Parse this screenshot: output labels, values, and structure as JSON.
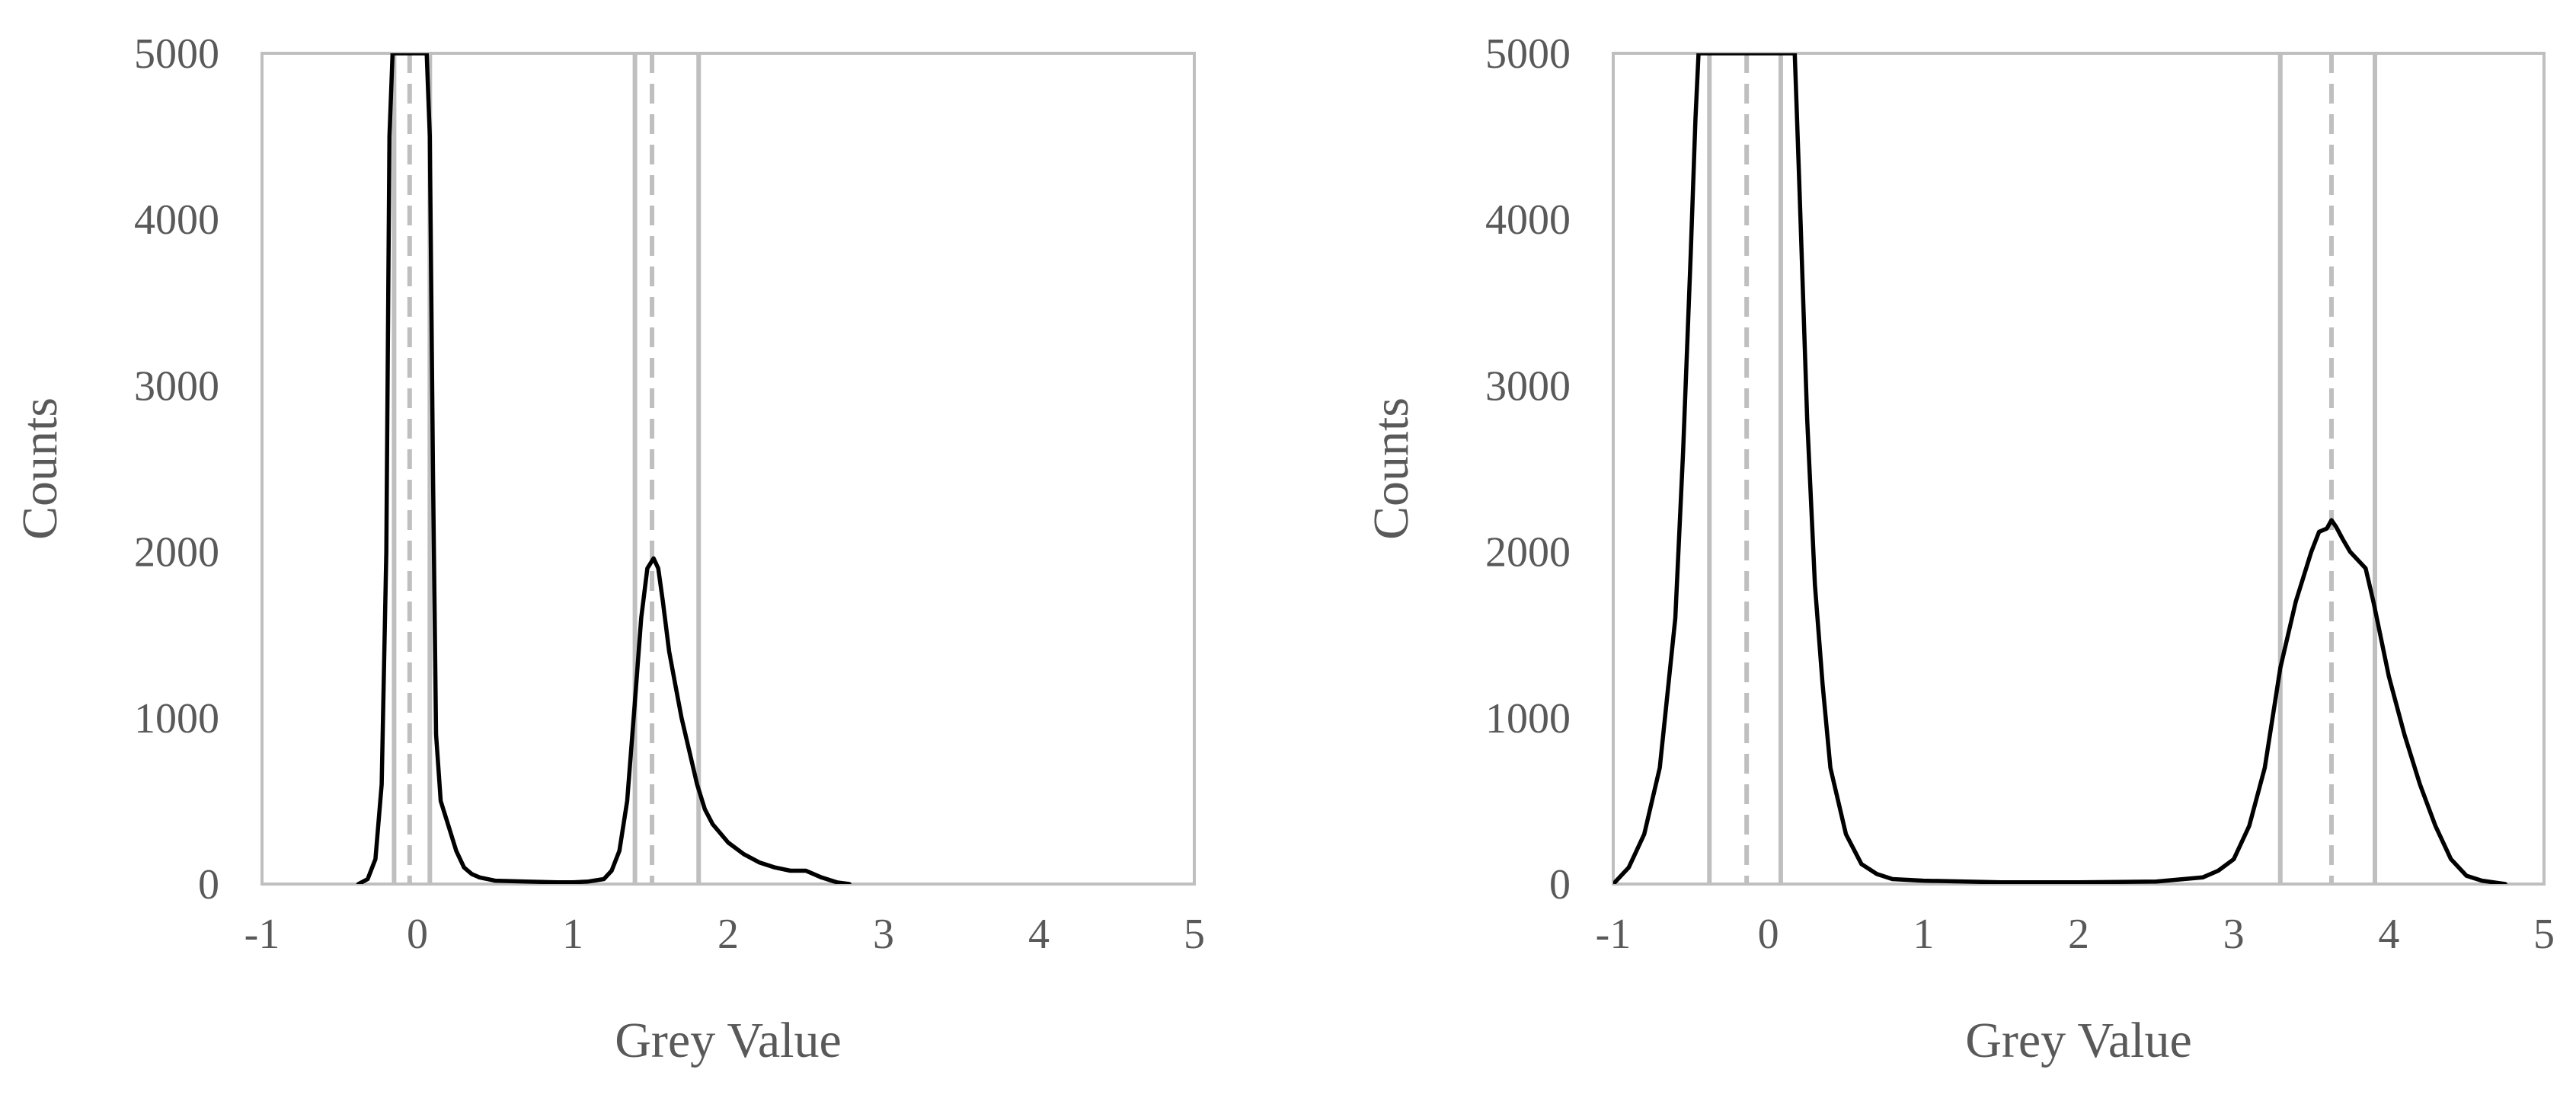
{
  "chart_data": [
    {
      "type": "line",
      "xlabel": "Grey Value",
      "ylabel": "Counts",
      "xlim": [
        -1,
        5
      ],
      "ylim": [
        0,
        5000
      ],
      "xticks": [
        "-1",
        "0",
        "1",
        "2",
        "3",
        "4",
        "5"
      ],
      "yticks": [
        "0",
        "1000",
        "2000",
        "3000",
        "4000",
        "5000"
      ],
      "grid": false,
      "legend": "none",
      "line_color": "#000000",
      "reference_line_color": "#bfbfbf",
      "reference_lines": [
        {
          "x": -0.15,
          "style": "solid"
        },
        {
          "x": -0.05,
          "style": "dashed"
        },
        {
          "x": 0.08,
          "style": "solid"
        },
        {
          "x": 1.4,
          "style": "solid"
        },
        {
          "x": 1.51,
          "style": "dashed"
        },
        {
          "x": 1.81,
          "style": "solid"
        }
      ],
      "series": [
        {
          "x": [
            -0.38,
            -0.32,
            -0.27,
            -0.23,
            -0.2,
            -0.18,
            -0.16,
            -0.14,
            -0.12,
            -0.1,
            -0.06,
            -0.02,
            0.02,
            0.04,
            0.06,
            0.08,
            0.1,
            0.12,
            0.15,
            0.2,
            0.25,
            0.3,
            0.35,
            0.4,
            0.5,
            0.7,
            0.9,
            1.0,
            1.1,
            1.2,
            1.25,
            1.3,
            1.35,
            1.4,
            1.44,
            1.48,
            1.52,
            1.55,
            1.58,
            1.62,
            1.66,
            1.7,
            1.75,
            1.8,
            1.85,
            1.9,
            2.0,
            2.1,
            2.2,
            2.3,
            2.4,
            2.5,
            2.6,
            2.7,
            2.78
          ],
          "y": [
            0,
            30,
            150,
            600,
            2000,
            4500,
            5000,
            5000,
            5000,
            5000,
            5000,
            5000,
            5000,
            5000,
            5000,
            4500,
            2500,
            900,
            500,
            350,
            200,
            100,
            60,
            40,
            20,
            15,
            10,
            10,
            15,
            30,
            80,
            200,
            500,
            1100,
            1600,
            1900,
            1960,
            1900,
            1700,
            1400,
            1200,
            1000,
            800,
            600,
            450,
            360,
            250,
            180,
            130,
            100,
            80,
            80,
            40,
            10,
            0
          ]
        }
      ]
    },
    {
      "type": "line",
      "xlabel": "Grey Value",
      "ylabel": "Counts",
      "xlim": [
        -1,
        5
      ],
      "ylim": [
        0,
        5000
      ],
      "xticks": [
        "-1",
        "0",
        "1",
        "2",
        "3",
        "4",
        "5"
      ],
      "yticks": [
        "0",
        "1000",
        "2000",
        "3000",
        "4000",
        "5000"
      ],
      "grid": false,
      "legend": "none",
      "line_color": "#000000",
      "reference_line_color": "#bfbfbf",
      "reference_lines": [
        {
          "x": -0.38,
          "style": "solid"
        },
        {
          "x": -0.14,
          "style": "dashed"
        },
        {
          "x": 0.08,
          "style": "solid"
        },
        {
          "x": 3.3,
          "style": "solid"
        },
        {
          "x": 3.63,
          "style": "dashed"
        },
        {
          "x": 3.91,
          "style": "solid"
        }
      ],
      "series": [
        {
          "x": [
            -1.0,
            -0.9,
            -0.8,
            -0.7,
            -0.6,
            -0.55,
            -0.5,
            -0.47,
            -0.45,
            -0.43,
            -0.4,
            -0.3,
            -0.1,
            0.1,
            0.15,
            0.17,
            0.2,
            0.25,
            0.3,
            0.35,
            0.4,
            0.5,
            0.6,
            0.7,
            0.8,
            1.0,
            1.5,
            2.0,
            2.5,
            2.8,
            2.9,
            3.0,
            3.1,
            3.2,
            3.3,
            3.4,
            3.5,
            3.55,
            3.6,
            3.63,
            3.66,
            3.7,
            3.75,
            3.8,
            3.85,
            3.9,
            4.0,
            4.1,
            4.2,
            4.3,
            4.4,
            4.5,
            4.6,
            4.75
          ],
          "y": [
            0,
            100,
            300,
            700,
            1600,
            2600,
            3800,
            4600,
            5000,
            5000,
            5000,
            5000,
            5000,
            5000,
            5000,
            5000,
            4200,
            2800,
            1800,
            1200,
            700,
            300,
            120,
            60,
            30,
            20,
            10,
            10,
            15,
            40,
            80,
            150,
            350,
            700,
            1300,
            1700,
            2000,
            2120,
            2140,
            2190,
            2150,
            2080,
            2000,
            1950,
            1900,
            1700,
            1250,
            900,
            600,
            350,
            150,
            50,
            20,
            0
          ]
        }
      ]
    }
  ]
}
